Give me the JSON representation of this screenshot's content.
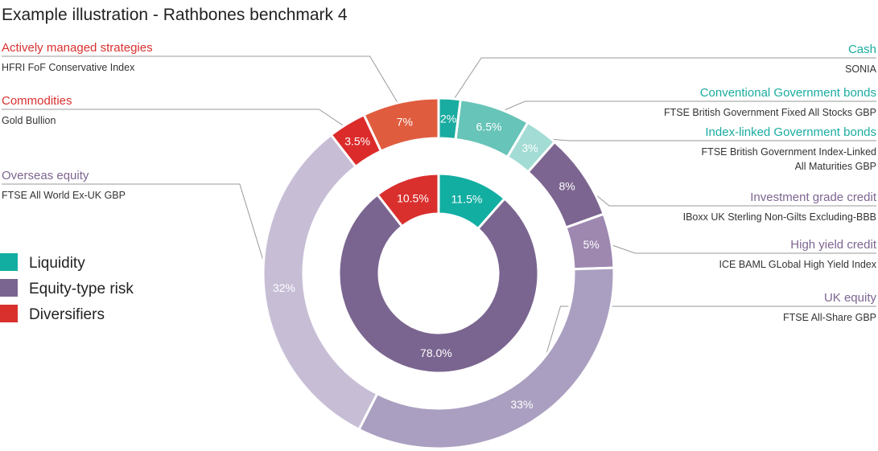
{
  "title": "Example illustration - Rathbones benchmark 4",
  "chart_data": {
    "type": "pie",
    "subtype": "nested-donut",
    "outer_ring": [
      {
        "name": "Cash",
        "index": "SONIA",
        "value": 2,
        "label": "2%",
        "color": "#1aaca0",
        "label_color": "#1aaca0"
      },
      {
        "name": "Conventional Government bonds",
        "index": "FTSE British Government Fixed All Stocks GBP",
        "value": 6.5,
        "label": "6.5%",
        "color": "#67c4b8",
        "label_color": "#1aaca0"
      },
      {
        "name": "Index-linked Government bonds",
        "index": "FTSE British Government Index-Linked All Maturities GBP",
        "value": 3,
        "label": "3%",
        "color": "#a3dcd5",
        "label_color": "#1aaca0"
      },
      {
        "name": "Investment grade credit",
        "index": "IBoxx UK Sterling Non-Gilts Excluding-BBB",
        "value": 8,
        "label": "8%",
        "color": "#7d6591",
        "label_color": "#7d6591"
      },
      {
        "name": "High yield credit",
        "index": "ICE BAML GLobal High Yield Index",
        "value": 5,
        "label": "5%",
        "color": "#9e88b0",
        "label_color": "#7d6591"
      },
      {
        "name": "UK equity",
        "index": "FTSE All-Share GBP",
        "value": 33,
        "label": "33%",
        "color": "#aa9fc0",
        "label_color": "#7d6591"
      },
      {
        "name": "Overseas equity",
        "index": "FTSE All World Ex-UK GBP",
        "value": 32,
        "label": "32%",
        "color": "#c7bed6",
        "label_color": "#7d6591"
      },
      {
        "name": "Commodities",
        "index": "Gold Bullion",
        "value": 3.5,
        "label": "3.5%",
        "color": "#dc2b2b",
        "label_color": "#d9302e"
      },
      {
        "name": "Actively managed strategies",
        "index": "HFRI FoF Conservative Index",
        "value": 7,
        "label": "7%",
        "color": "#e05c3e",
        "label_color": "#d9302e"
      }
    ],
    "inner_ring": [
      {
        "name": "Liquidity",
        "value": 11.5,
        "label": "11.5%",
        "color": "#12aea2"
      },
      {
        "name": "Equity-type risk",
        "value": 78.0,
        "label": "78.0%",
        "color": "#7a6590"
      },
      {
        "name": "Diversifiers",
        "value": 10.5,
        "label": "10.5%",
        "color": "#d9302e"
      }
    ]
  }
}
